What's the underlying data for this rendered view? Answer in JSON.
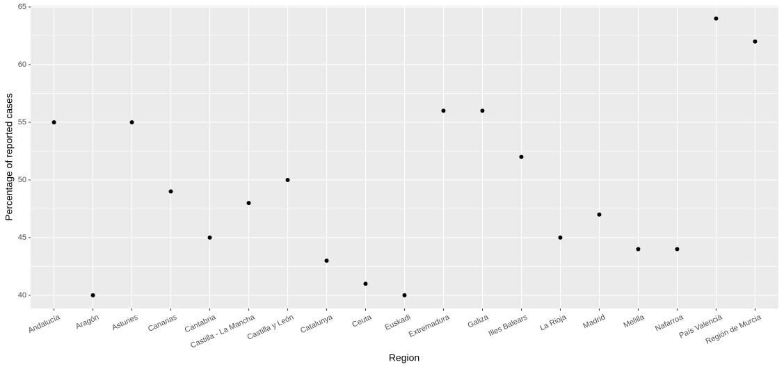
{
  "chart_data": {
    "type": "scatter",
    "x_label": "Region",
    "y_label": "Percentage of reported cases",
    "categories": [
      "Andalucía",
      "Aragón",
      "Asturies",
      "Canarias",
      "Cantabria",
      "Castilla - La Mancha",
      "Castilla y León",
      "Catalunya",
      "Ceuta",
      "Euskadi",
      "Extremadura",
      "Galiza",
      "Illes Balears",
      "La Rioja",
      "Madrid",
      "Melilla",
      "Nafarroa",
      "País Valencià",
      "Región de Murcia"
    ],
    "values": [
      55,
      40,
      55,
      49,
      45,
      48,
      50,
      43,
      41,
      40,
      56,
      56,
      52,
      45,
      47,
      44,
      44,
      64,
      62
    ],
    "color": "#000000",
    "ylim": [
      38.85,
      65.12
    ],
    "yticks": [
      40,
      45,
      50,
      55,
      60,
      65
    ],
    "grid": true,
    "minor_grid": true
  }
}
